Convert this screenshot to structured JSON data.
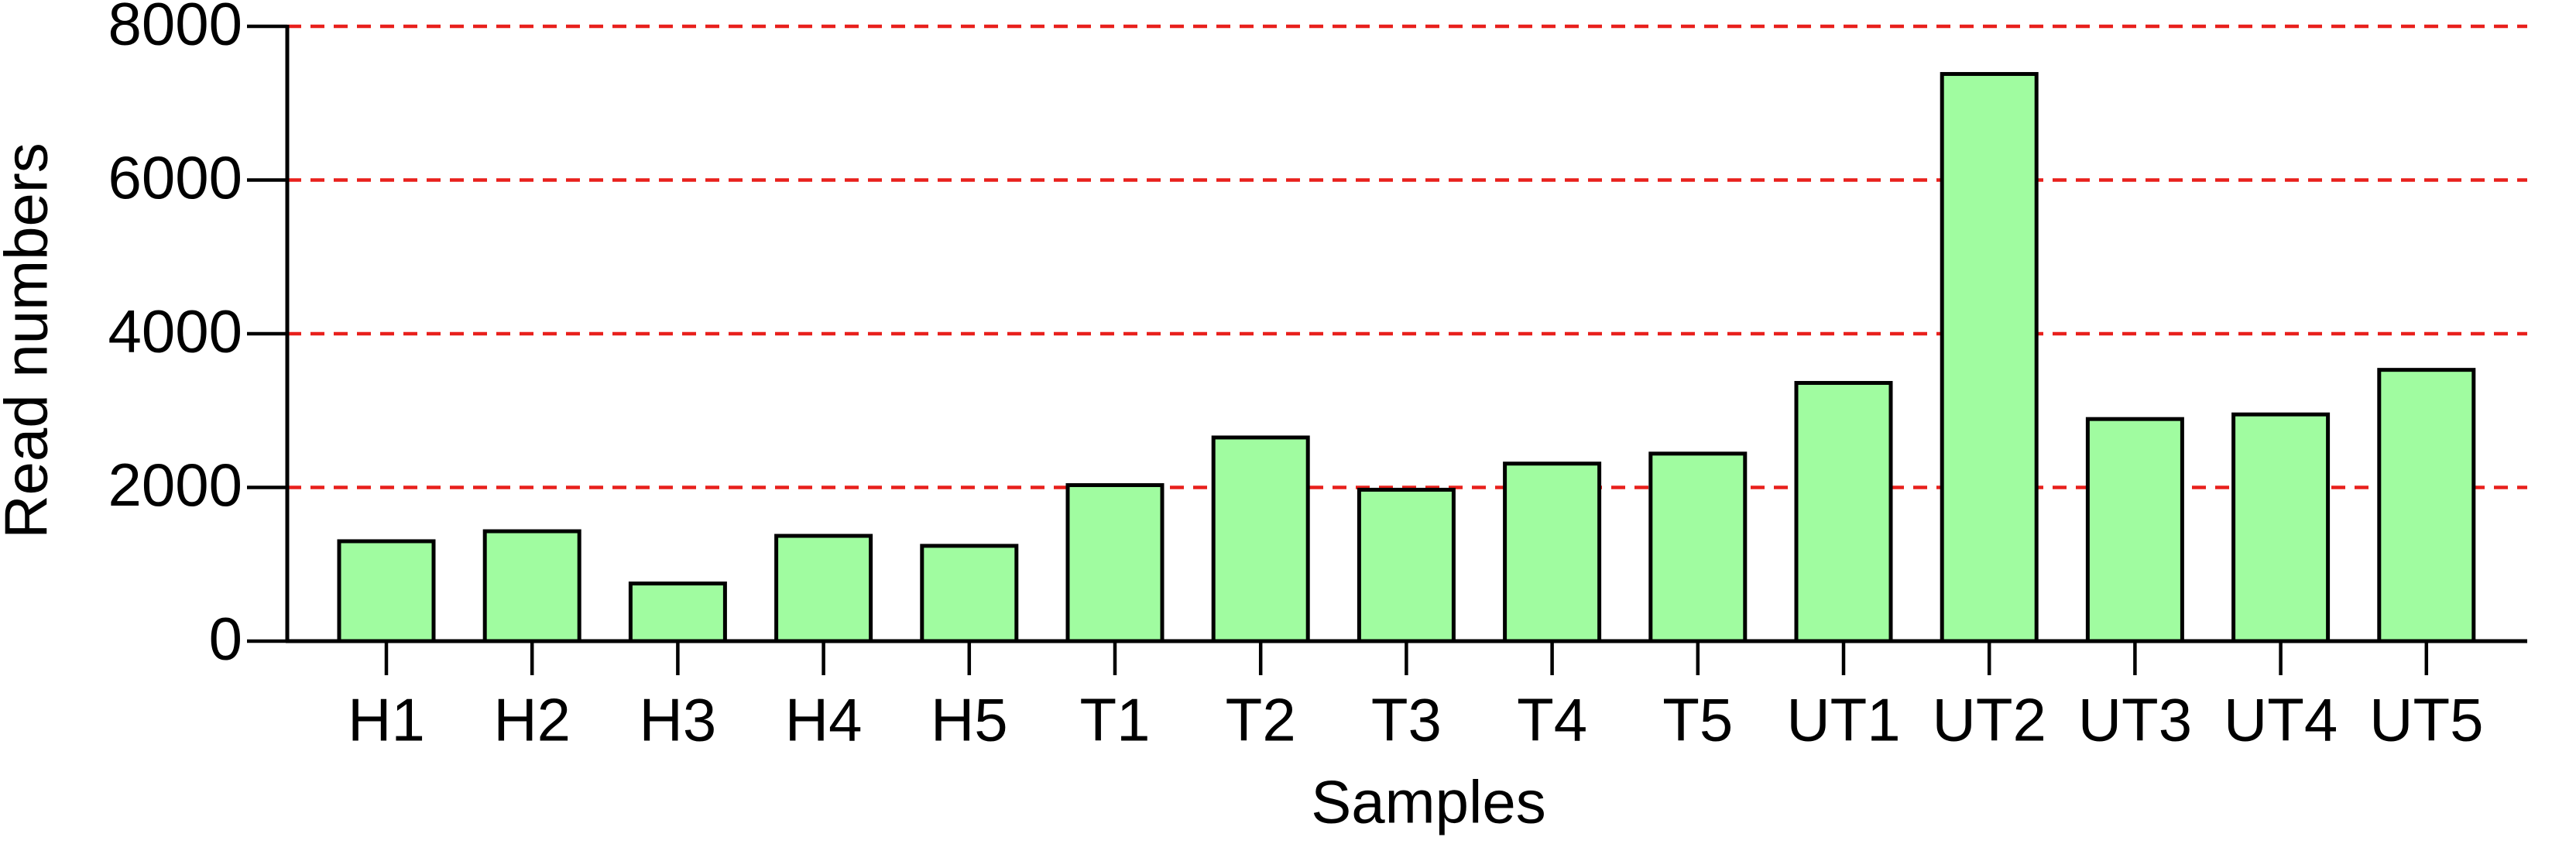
{
  "chart_data": {
    "type": "bar",
    "x_label": "Samples",
    "y_label": "Read numbers",
    "categories": [
      "H1",
      "H2",
      "H3",
      "H4",
      "H5",
      "T1",
      "T2",
      "T3",
      "T4",
      "T5",
      "UT1",
      "UT2",
      "UT3",
      "UT4",
      "UT5"
    ],
    "values": [
      1300,
      1430,
      750,
      1370,
      1240,
      2030,
      2650,
      1970,
      2310,
      2440,
      3360,
      7380,
      2890,
      2950,
      3530
    ],
    "color": "#a0fca0",
    "ylim": [
      0,
      8000
    ],
    "yticks": [
      0,
      2000,
      4000,
      6000,
      8000
    ],
    "grid": true,
    "grid_color": "#e8201c"
  }
}
